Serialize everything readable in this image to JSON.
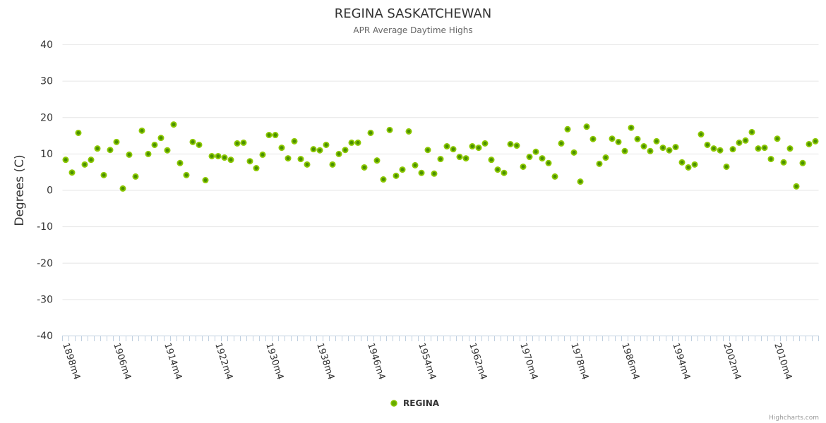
{
  "chart_data": {
    "type": "scatter",
    "title": "REGINA SASKATCHEWAN",
    "subtitle": "APR Average Daytime Highs",
    "ylabel": "Degrees (C)",
    "xlabel": "",
    "ylim": [
      -40,
      40
    ],
    "yticks": [
      40,
      30,
      20,
      10,
      0,
      -10,
      -20,
      -30,
      -40
    ],
    "grid": true,
    "legend_position": "bottom-center",
    "credits": "Highcharts.com",
    "series_color": "#66aa00",
    "first_year": 1898,
    "category_suffix": "m4",
    "label_every": 8,
    "series": [
      {
        "name": "REGINA",
        "values": [
          8.3,
          4.8,
          15.7,
          7.0,
          8.3,
          11.4,
          4.1,
          11.0,
          13.2,
          0.4,
          9.7,
          3.7,
          16.3,
          9.9,
          12.4,
          14.3,
          10.9,
          18.0,
          7.4,
          4.1,
          13.2,
          12.4,
          2.7,
          9.3,
          9.3,
          8.9,
          8.3,
          12.8,
          13.0,
          7.9,
          6.0,
          9.7,
          15.1,
          15.1,
          11.6,
          8.7,
          13.4,
          8.5,
          7.0,
          11.2,
          10.9,
          12.4,
          7.0,
          9.9,
          11.0,
          13.0,
          13.0,
          6.2,
          15.7,
          8.1,
          2.9,
          16.5,
          3.9,
          5.6,
          16.1,
          6.8,
          4.7,
          11.0,
          4.5,
          8.5,
          12.0,
          11.2,
          9.1,
          8.7,
          12.0,
          11.6,
          12.8,
          8.3,
          5.6,
          4.7,
          12.6,
          12.2,
          6.4,
          9.1,
          10.5,
          8.7,
          7.4,
          3.7,
          12.8,
          16.7,
          10.3,
          2.3,
          17.4,
          14.0,
          7.2,
          8.9,
          14.1,
          13.2,
          10.7,
          17.1,
          14.0,
          12.0,
          10.7,
          13.4,
          11.6,
          10.9,
          11.8,
          7.6,
          6.2,
          7.0,
          15.3,
          12.4,
          11.4,
          10.9,
          6.4,
          11.2,
          13.0,
          13.6,
          15.9,
          11.4,
          11.6,
          8.5,
          14.1,
          7.6,
          11.4,
          1.0,
          7.4,
          12.6,
          13.4
        ]
      }
    ]
  }
}
